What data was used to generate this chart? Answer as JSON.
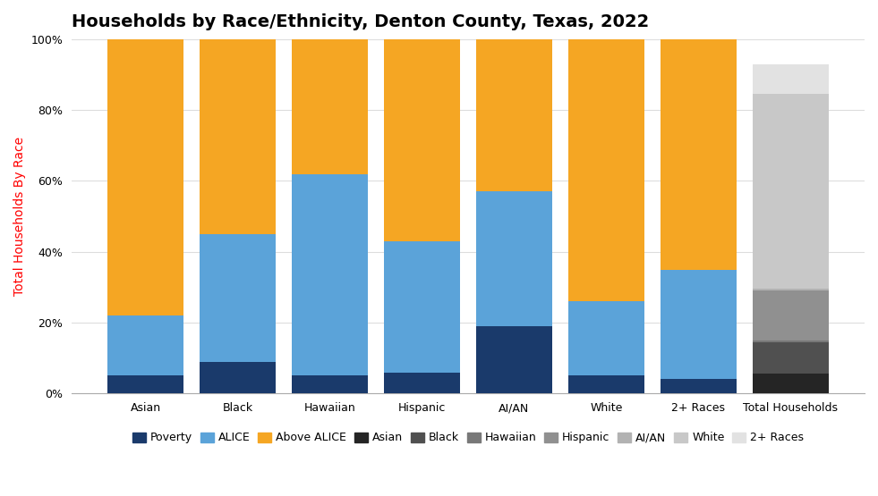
{
  "title": "Households by Race/Ethnicity, Denton County, Texas, 2022",
  "ylabel": "Total Households By Race",
  "categories": [
    "Asian",
    "Black",
    "Hawaiian",
    "Hispanic",
    "AI/AN",
    "White",
    "2+ Races"
  ],
  "poverty": [
    5,
    9,
    5,
    6,
    19,
    5,
    4
  ],
  "alice": [
    17,
    36,
    57,
    37,
    38,
    21,
    31
  ],
  "above_alice": [
    78,
    55,
    38,
    57,
    43,
    74,
    65
  ],
  "poverty_color": "#1a3a6b",
  "alice_color": "#5ba3d9",
  "above_alice_color": "#f5a623",
  "total_households_segments": [
    {
      "label": "Asian",
      "value": 5.5,
      "color": "#252525"
    },
    {
      "label": "Black",
      "value": 9.0,
      "color": "#505050"
    },
    {
      "label": "Hawaiian",
      "value": 0.5,
      "color": "#787878"
    },
    {
      "label": "Hispanic",
      "value": 14.0,
      "color": "#909090"
    },
    {
      "label": "AI/AN",
      "value": 0.5,
      "color": "#b2b2b2"
    },
    {
      "label": "White",
      "value": 55.0,
      "color": "#c8c8c8"
    },
    {
      "label": "2+ Races",
      "value": 8.5,
      "color": "#e2e2e2"
    }
  ],
  "total_bar_max": 93,
  "legend_items": [
    {
      "label": "Poverty",
      "color": "#1a3a6b"
    },
    {
      "label": "ALICE",
      "color": "#5ba3d9"
    },
    {
      "label": "Above ALICE",
      "color": "#f5a623"
    },
    {
      "label": "Asian",
      "color": "#252525"
    },
    {
      "label": "Black",
      "color": "#505050"
    },
    {
      "label": "Hawaiian",
      "color": "#787878"
    },
    {
      "label": "Hispanic",
      "color": "#909090"
    },
    {
      "label": "AI/AN",
      "color": "#b2b2b2"
    },
    {
      "label": "White",
      "color": "#c8c8c8"
    },
    {
      "label": "2+ Races",
      "color": "#e2e2e2"
    }
  ],
  "ylim": [
    0,
    100
  ],
  "yticks": [
    0,
    20,
    40,
    60,
    80,
    100
  ],
  "ytick_labels": [
    "0%",
    "20%",
    "40%",
    "60%",
    "80%",
    "100%"
  ],
  "title_fontsize": 14,
  "axis_label_fontsize": 10,
  "tick_fontsize": 9,
  "legend_fontsize": 9,
  "bar_width": 0.82,
  "background_color": "#ffffff",
  "grid_color": "#dddddd"
}
